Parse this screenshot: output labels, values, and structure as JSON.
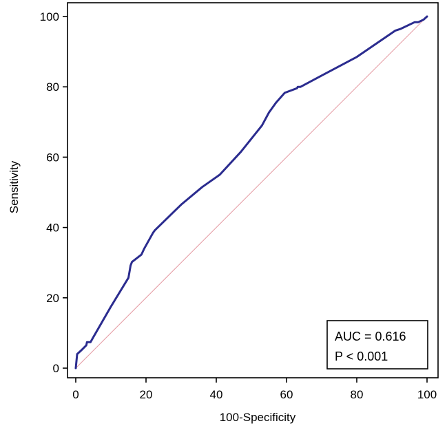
{
  "chart_data": {
    "type": "line",
    "xlabel": "100-Specificity",
    "ylabel": "Sensitivity",
    "xlim": [
      0,
      100
    ],
    "ylim": [
      0,
      100
    ],
    "x_ticks": [
      0,
      20,
      40,
      60,
      80,
      100
    ],
    "y_ticks": [
      0,
      20,
      40,
      60,
      80,
      100
    ],
    "grid": false,
    "legend_position": "bottom-right",
    "annotation": {
      "auc": "AUC = 0.616",
      "p_value": "P < 0.001"
    },
    "colors": {
      "roc": "#2b2c8f",
      "reference": "#e6a0a8",
      "axis": "#000000"
    },
    "series": [
      {
        "values": [
          [
            0,
            0
          ],
          [
            0.2,
            2
          ],
          [
            0.4,
            4
          ],
          [
            1.5,
            5
          ],
          [
            3,
            6.5
          ],
          [
            3.2,
            7.4
          ],
          [
            4.2,
            7.4
          ],
          [
            5,
            8.8
          ],
          [
            10,
            17.5
          ],
          [
            15,
            25.7
          ],
          [
            15.6,
            29.2
          ],
          [
            16,
            30.2
          ],
          [
            18.7,
            32.3
          ],
          [
            19.5,
            34
          ],
          [
            22,
            38.5
          ],
          [
            22.5,
            39.2
          ],
          [
            30,
            46.5
          ],
          [
            36,
            51.5
          ],
          [
            41,
            55
          ],
          [
            47,
            61.5
          ],
          [
            53,
            69
          ],
          [
            55,
            72.7
          ],
          [
            57,
            75.5
          ],
          [
            59.5,
            78.3
          ],
          [
            63,
            79.6
          ],
          [
            63.2,
            80
          ],
          [
            64,
            80
          ],
          [
            70,
            83.2
          ],
          [
            80,
            88.5
          ],
          [
            91,
            96
          ],
          [
            92.5,
            96.5
          ],
          [
            96.5,
            98.4
          ],
          [
            97.5,
            98.4
          ],
          [
            99,
            99.1
          ],
          [
            100,
            100
          ]
        ]
      },
      {
        "values": [
          [
            0,
            0
          ],
          [
            100,
            100
          ]
        ]
      }
    ]
  }
}
